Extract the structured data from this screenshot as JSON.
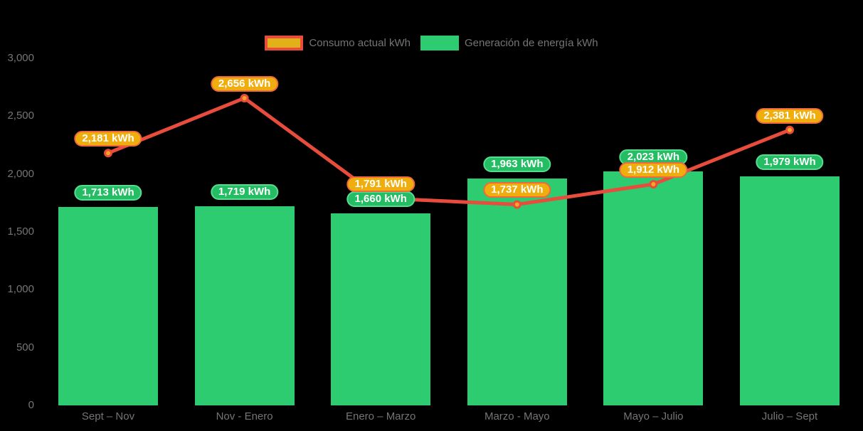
{
  "legend": {
    "items": [
      {
        "label": "Consumo actual kWh",
        "series": "line"
      },
      {
        "label": "Generación de energía kWh",
        "series": "bar"
      }
    ]
  },
  "chart_data": {
    "type": "combo-bar-line",
    "title": "",
    "xlabel": "",
    "ylabel": "",
    "categories": [
      "Sept – Nov",
      "Nov - Enero",
      "Enero – Marzo",
      "Marzo - Mayo",
      "Mayo – Julio",
      "Julio – Sept"
    ],
    "series": [
      {
        "name": "Generación de energía kWh",
        "type": "bar",
        "values": [
          1713,
          1719,
          1660,
          1963,
          2023,
          1979
        ],
        "data_labels": [
          "1,713 kWh",
          "1,719 kWh",
          "1,660 kWh",
          "1,963 kWh",
          "2,023 kWh",
          "1,979 kWh"
        ],
        "color": "#2ECC71"
      },
      {
        "name": "Consumo actual kWh",
        "type": "line",
        "values": [
          2181,
          2656,
          1791,
          1737,
          1912,
          2381
        ],
        "data_labels": [
          "2,181 kWh",
          "2,656 kWh",
          "1,791 kWh",
          "1,737 kWh",
          "1,912 kWh",
          "2,381 kWh"
        ],
        "color": "#E74C3C",
        "marker_color": "#F5A623"
      }
    ],
    "ylim": [
      0,
      3000
    ],
    "ytick_step": 500,
    "ytick_labels": [
      "0",
      "500",
      "1,000",
      "1,500",
      "2,000",
      "2,500",
      "3,000"
    ],
    "grid": false,
    "legend_position": "top-center",
    "colors": {
      "background": "#000000",
      "axis_text": "#757575",
      "bar": "#2ECC71",
      "line": "#E74C3C",
      "marker_fill": "#F5A623",
      "marker_stroke": "#E74C3C",
      "bar_label_bg": "#24BD63",
      "bar_label_border": "#55DD90",
      "bar_label_text": "#FFFFFF",
      "line_label_bg": "#F0AD0E",
      "line_label_border": "#EE6A3C",
      "line_label_text": "#FFFFFF",
      "legend_line_swatch_fill": "#E2B118",
      "legend_line_swatch_border": "#E74C3C"
    }
  }
}
